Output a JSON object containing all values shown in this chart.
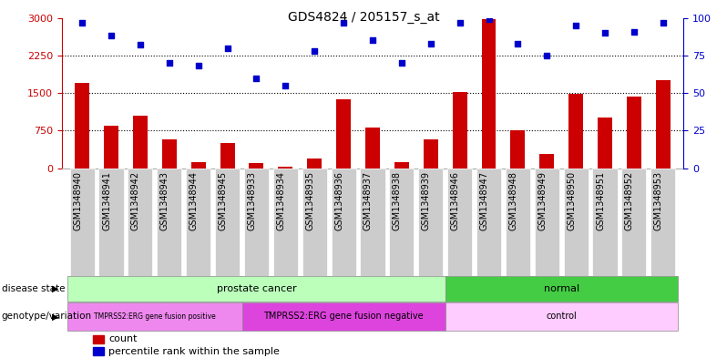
{
  "title": "GDS4824 / 205157_s_at",
  "samples": [
    "GSM1348940",
    "GSM1348941",
    "GSM1348942",
    "GSM1348943",
    "GSM1348944",
    "GSM1348945",
    "GSM1348933",
    "GSM1348934",
    "GSM1348935",
    "GSM1348936",
    "GSM1348937",
    "GSM1348938",
    "GSM1348939",
    "GSM1348946",
    "GSM1348947",
    "GSM1348948",
    "GSM1348949",
    "GSM1348950",
    "GSM1348951",
    "GSM1348952",
    "GSM1348953"
  ],
  "counts": [
    1700,
    850,
    1050,
    580,
    130,
    500,
    100,
    30,
    200,
    1380,
    820,
    120,
    580,
    1520,
    2980,
    760,
    280,
    1490,
    1010,
    1430,
    1760
  ],
  "percentile_ranks": [
    97,
    88,
    82,
    70,
    68,
    80,
    60,
    55,
    78,
    97,
    85,
    70,
    83,
    97,
    99,
    83,
    75,
    95,
    90,
    91,
    97
  ],
  "bar_color": "#cc0000",
  "dot_color": "#0000cc",
  "ylim_left": [
    0,
    3000
  ],
  "ylim_right": [
    0,
    100
  ],
  "yticks_left": [
    0,
    750,
    1500,
    2250,
    3000
  ],
  "yticks_right": [
    0,
    25,
    50,
    75,
    100
  ],
  "hlines": [
    750,
    1500,
    2250
  ],
  "disease_state_groups": [
    {
      "label": "prostate cancer",
      "start": 0,
      "end": 12,
      "color": "#bbffbb"
    },
    {
      "label": "normal",
      "start": 13,
      "end": 20,
      "color": "#44cc44"
    }
  ],
  "genotype_groups": [
    {
      "label": "TMPRSS2:ERG gene fusion positive",
      "start": 0,
      "end": 5,
      "color": "#ee88ee"
    },
    {
      "label": "TMPRSS2:ERG gene fusion negative",
      "start": 6,
      "end": 12,
      "color": "#dd44dd"
    },
    {
      "label": "control",
      "start": 13,
      "end": 20,
      "color": "#ffccff"
    }
  ],
  "disease_label": "disease state",
  "genotype_label": "genotype/variation",
  "legend_count_label": "count",
  "legend_pct_label": "percentile rank within the sample",
  "bg_color": "#ffffff",
  "plot_bg_color": "#ffffff",
  "axis_color_left": "#cc0000",
  "axis_color_right": "#0000cc",
  "grid_color": "#000000",
  "tick_bg_color": "#cccccc",
  "tick_label_fontsize": 7,
  "bar_width": 0.5
}
